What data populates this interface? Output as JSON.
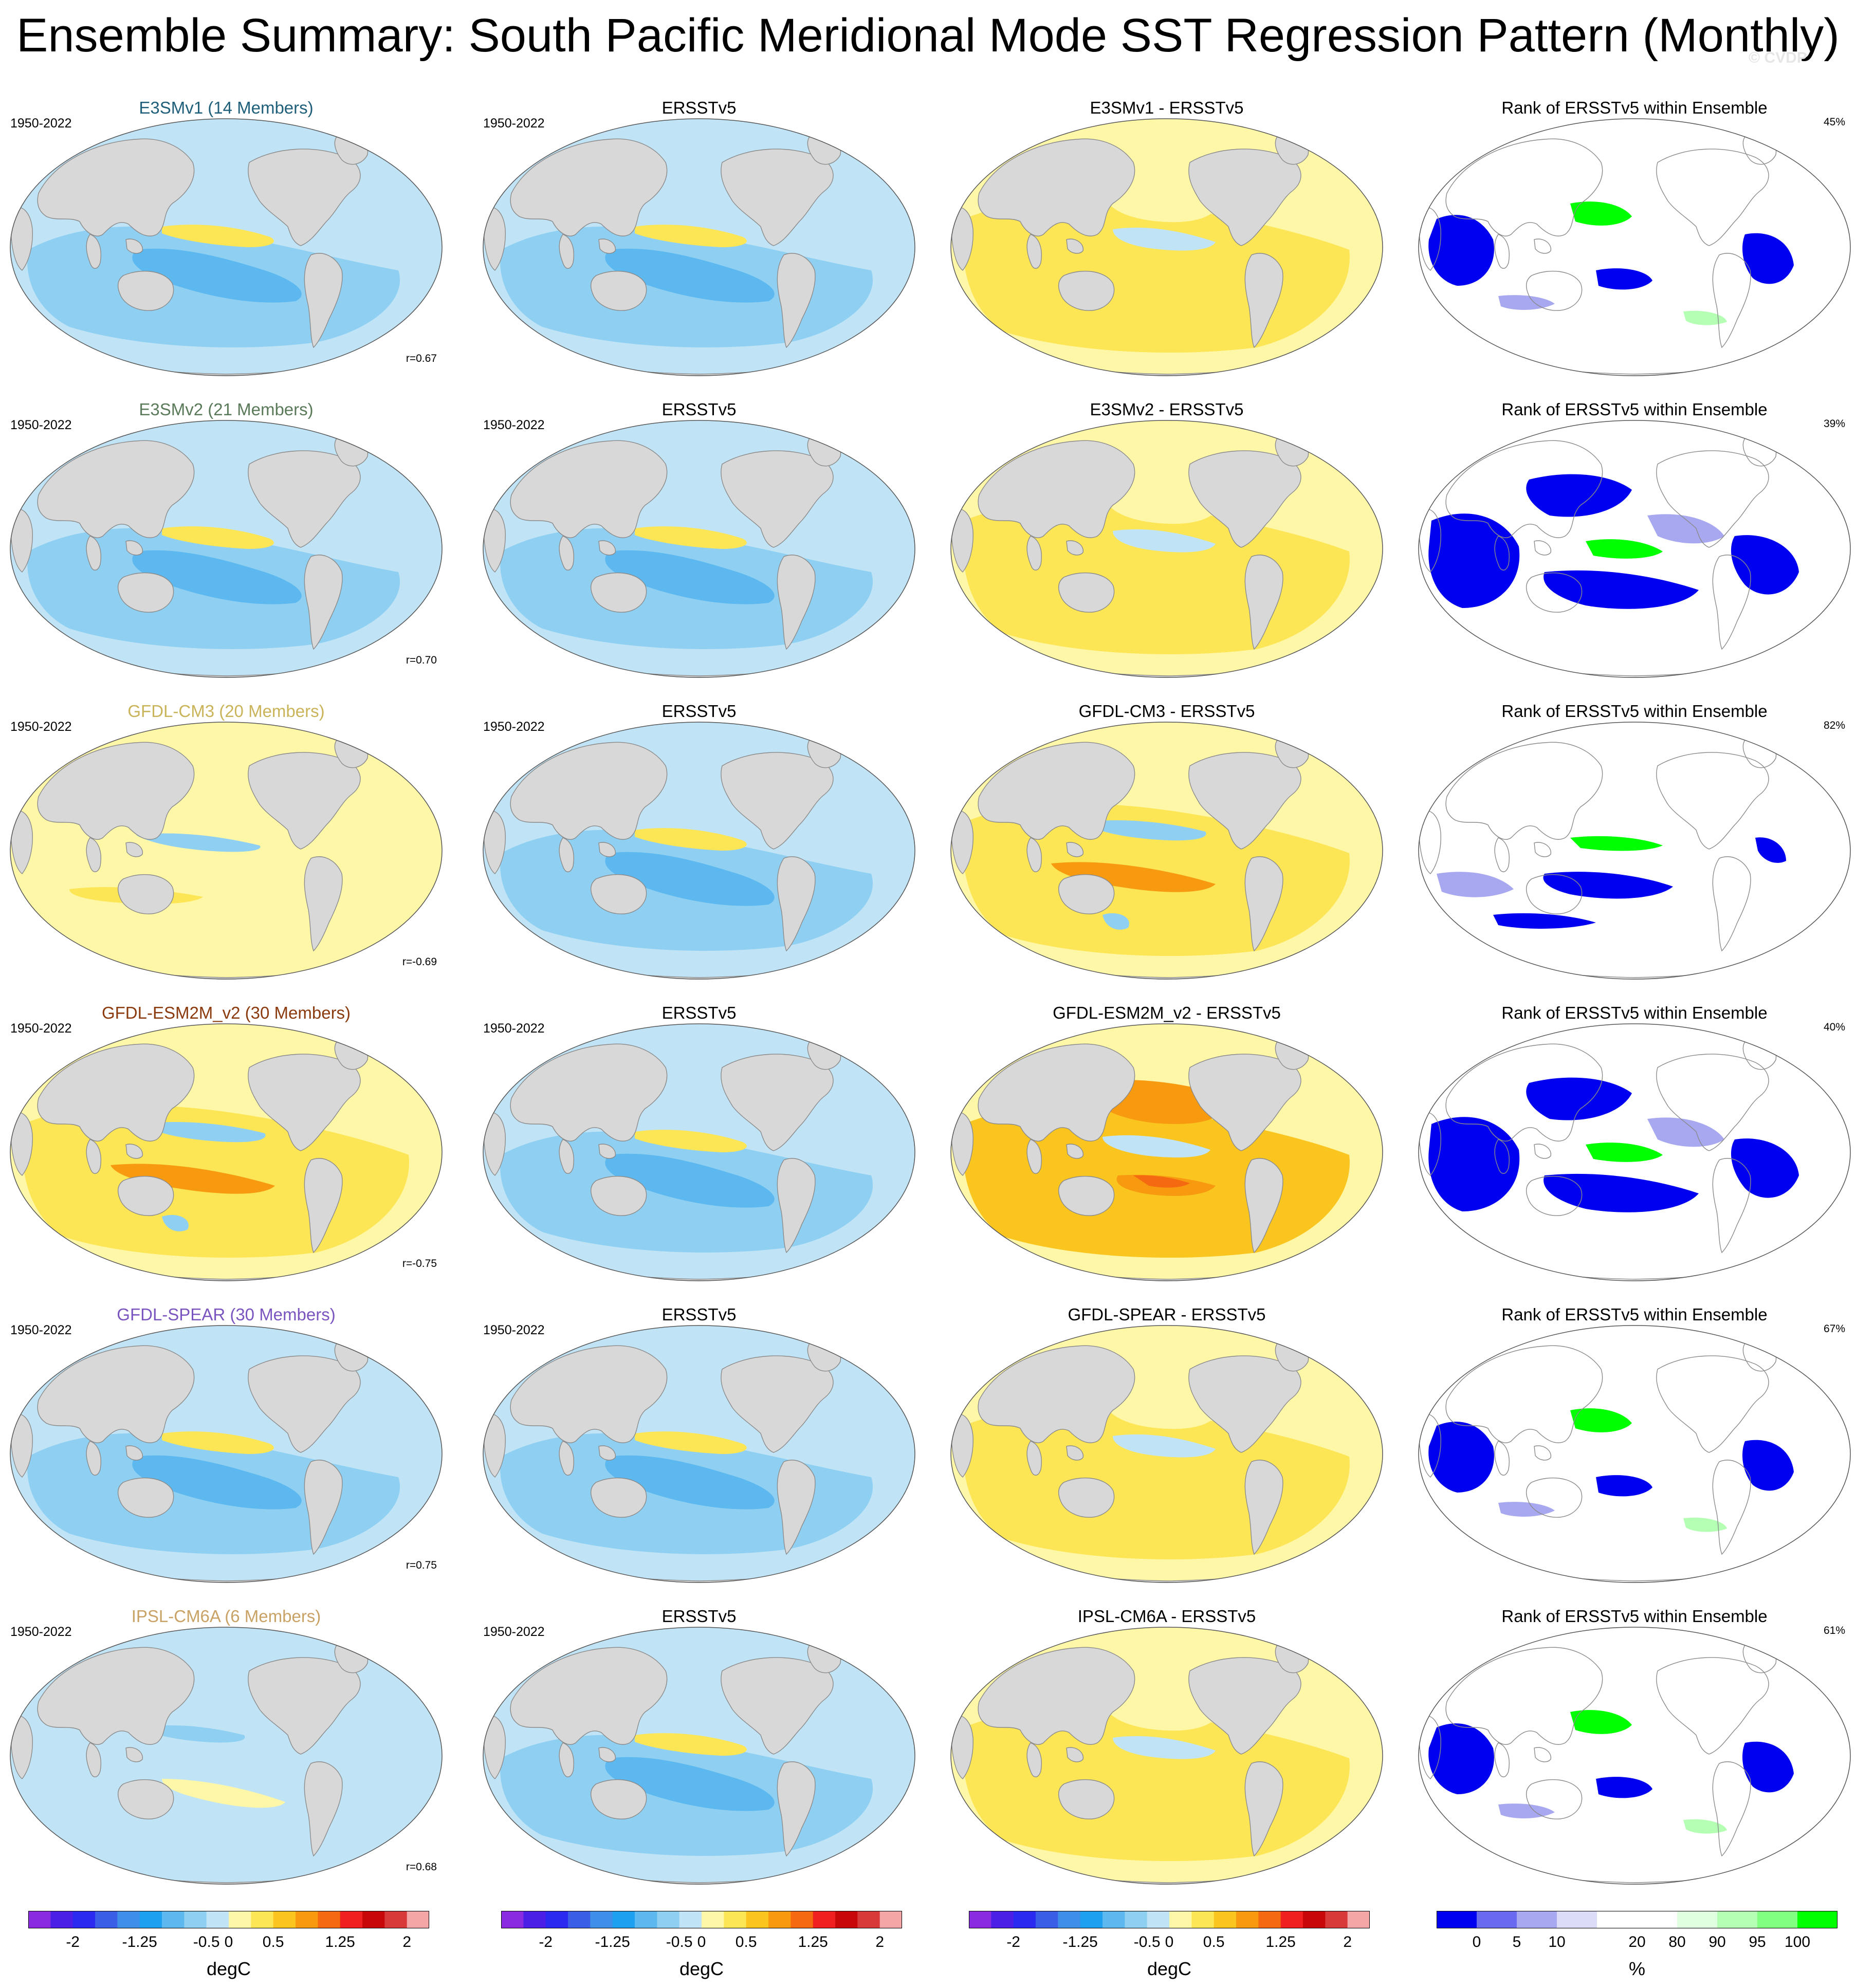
{
  "title": "Ensemble Summary: South Pacific Meridional Mode SST Regression Pattern (Monthly)",
  "copyright": "© CVDP",
  "rows": [
    {
      "model": "E3SMv1 (14 Members)",
      "model_color": "#1f5f7a",
      "mode": "cool",
      "period": "1950-2022",
      "r": "r=0.67",
      "diff_title": "E3SMv1 - ERSSTv5",
      "diff_mode": "warm-mixed",
      "rank_title": "Rank of ERSSTv5 within Ensemble",
      "pct": "45%",
      "rank_mode": "a"
    },
    {
      "model": "E3SMv2 (21 Members)",
      "model_color": "#5a7a5a",
      "mode": "cool",
      "period": "1950-2022",
      "r": "r=0.70",
      "diff_title": "E3SMv2 - ERSSTv5",
      "diff_mode": "warm-mixed",
      "rank_title": "Rank of ERSSTv5 within Ensemble",
      "pct": "39%",
      "rank_mode": "b"
    },
    {
      "model": "GFDL-CM3 (20 Members)",
      "model_color": "#c9b45a",
      "mode": "warm-light",
      "period": "1950-2022",
      "r": "r=-0.69",
      "diff_title": "GFDL-CM3 - ERSSTv5",
      "diff_mode": "warm",
      "rank_title": "Rank of ERSSTv5 within Ensemble",
      "pct": "82%",
      "rank_mode": "c"
    },
    {
      "model": "GFDL-ESM2M_v2 (30 Members)",
      "model_color": "#8b3a0e",
      "mode": "warm",
      "period": "1950-2022",
      "r": "r=-0.75",
      "diff_title": "GFDL-ESM2M_v2 - ERSSTv5",
      "diff_mode": "hot",
      "rank_title": "Rank of ERSSTv5 within Ensemble",
      "pct": "40%",
      "rank_mode": "b"
    },
    {
      "model": "GFDL-SPEAR (30 Members)",
      "model_color": "#7a55c0",
      "mode": "cool",
      "period": "1950-2022",
      "r": "r=0.75",
      "diff_title": "GFDL-SPEAR - ERSSTv5",
      "diff_mode": "warm-mixed",
      "rank_title": "Rank of ERSSTv5 within Ensemble",
      "pct": "67%",
      "rank_mode": "a"
    },
    {
      "model": "IPSL-CM6A (6 Members)",
      "model_color": "#c9a266",
      "mode": "cool-light",
      "period": "1950-2022",
      "r": "r=0.68",
      "diff_title": "IPSL-CM6A - ERSSTv5",
      "diff_mode": "warm-mixed",
      "rank_title": "Rank of ERSSTv5 within Ensemble",
      "pct": "61%",
      "rank_mode": "a"
    }
  ],
  "obs_title": "ERSSTv5",
  "obs_period": "1950-2022",
  "sst_colorbar": {
    "units": "degC",
    "colors": [
      "#8a2be2",
      "#4b1fe6",
      "#2a2af0",
      "#3a5ee6",
      "#3f8fe8",
      "#1ea0f0",
      "#5cb8ee",
      "#8fd0f2",
      "#c0e4f6",
      "#fff7a8",
      "#fde655",
      "#fbc520",
      "#f89a10",
      "#f56a10",
      "#f02020",
      "#c80808",
      "#d83a3a",
      "#f4a6a6"
    ],
    "ticks": [
      "-2",
      "-1.25",
      "-0.5",
      "0",
      "0.5",
      "1.25",
      "2"
    ]
  },
  "rank_colorbar": {
    "units": "%",
    "colors": [
      "#0000f0",
      "#6a6af0",
      "#a8a8f0",
      "#dcdcf8",
      "#ffffff",
      "#ffffff",
      "#e0ffe0",
      "#b4ffb4",
      "#80ff80",
      "#00ff00"
    ],
    "ticks": [
      "0",
      "5",
      "10",
      "20",
      "80",
      "90",
      "95",
      "100"
    ]
  },
  "palette": {
    "land": "#d8d8d8",
    "ocean_cool": "#c0e4f6",
    "ocean_mid": "#8fd0f2",
    "ocean_deep": "#5cb8ee",
    "warm_light": "#fff7a8",
    "warm": "#fde655",
    "warm_dark": "#fbc520",
    "hot": "#f89a10",
    "rank_blue": "#0000f0",
    "rank_lblue": "#a8a8f0",
    "rank_green": "#00ff00",
    "rank_lgreen": "#b4ffb4"
  }
}
